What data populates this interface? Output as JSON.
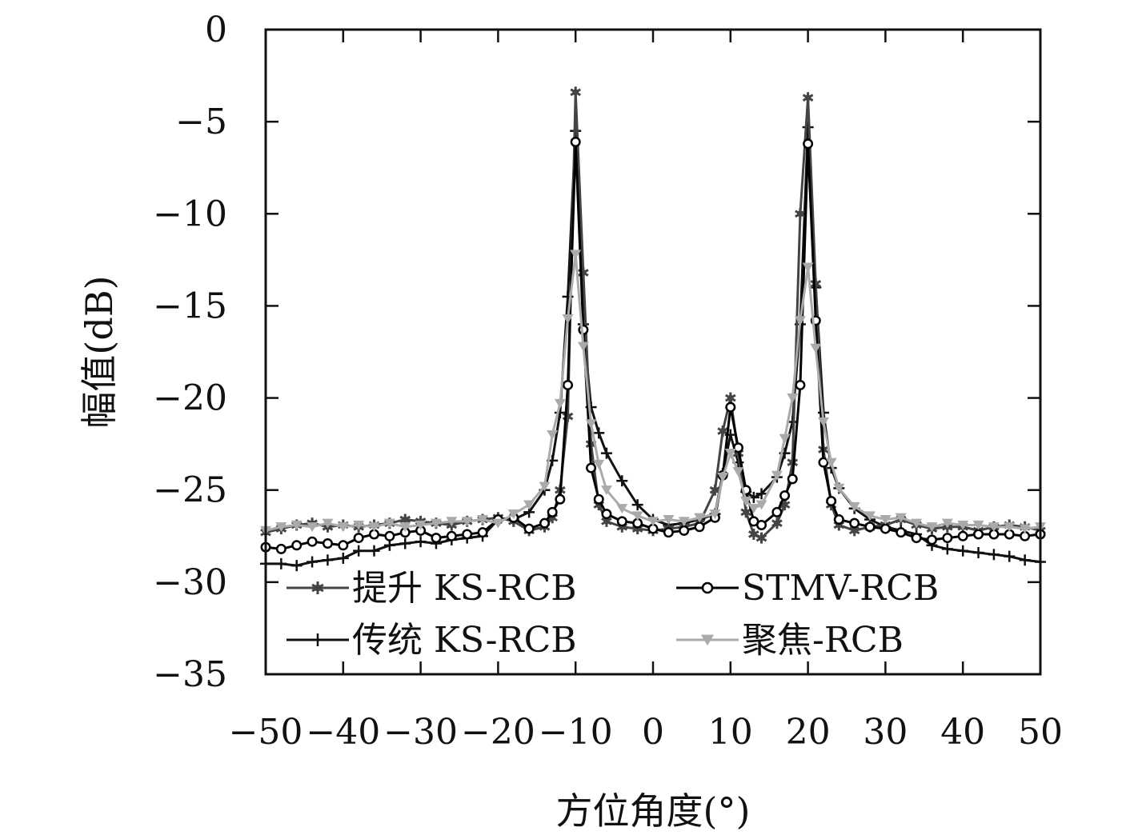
{
  "chart_data": {
    "type": "line",
    "xlabel": "方位角度(°)",
    "ylabel": "幅值(dB)",
    "xlim": [
      -50,
      50
    ],
    "ylim": [
      -35,
      0
    ],
    "xticks": [
      -50,
      -40,
      -30,
      -20,
      -10,
      0,
      10,
      20,
      30,
      40,
      50
    ],
    "xtick_labels": [
      "−50",
      "−40",
      "−30",
      "−20",
      "−10",
      "0",
      "10",
      "20",
      "30",
      "40",
      "50"
    ],
    "yticks": [
      0,
      -5,
      -10,
      -15,
      -20,
      -25,
      -30,
      -35
    ],
    "ytick_labels": [
      "0",
      "−5",
      "−10",
      "−15",
      "−20",
      "−25",
      "−30",
      "−35"
    ],
    "grid": false,
    "legend_position": "bottom-left",
    "x": [
      -50,
      -48,
      -46,
      -44,
      -42,
      -40,
      -38,
      -36,
      -34,
      -32,
      -30,
      -28,
      -26,
      -24,
      -22,
      -20,
      -18,
      -16,
      -14,
      -13,
      -12,
      -11,
      -10,
      -9,
      -8,
      -7,
      -6,
      -4,
      -2,
      0,
      2,
      4,
      6,
      8,
      9,
      10,
      11,
      12,
      13,
      14,
      16,
      17,
      18,
      19,
      20,
      21,
      22,
      23,
      24,
      26,
      28,
      30,
      32,
      34,
      36,
      38,
      40,
      42,
      44,
      46,
      48,
      50
    ],
    "series": [
      {
        "name": "提升 KS-RCB",
        "color": "#444444",
        "marker": "asterisk",
        "values": [
          -27.3,
          -27.1,
          -26.9,
          -26.8,
          -27.0,
          -26.9,
          -27.0,
          -26.9,
          -26.8,
          -26.6,
          -26.7,
          -26.8,
          -26.9,
          -26.7,
          -26.6,
          -26.5,
          -26.7,
          -27.2,
          -27.0,
          -26.5,
          -25.0,
          -21.0,
          -3.4,
          -13.2,
          -22.5,
          -25.8,
          -26.7,
          -27.0,
          -27.1,
          -27.2,
          -27.1,
          -27.0,
          -26.8,
          -25.0,
          -21.8,
          -20.0,
          -23.0,
          -26.2,
          -27.4,
          -27.6,
          -26.8,
          -25.8,
          -23.5,
          -10.0,
          -3.7,
          -13.8,
          -22.8,
          -25.8,
          -26.9,
          -27.2,
          -27.0,
          -26.9,
          -26.6,
          -26.9,
          -27.1,
          -27.0,
          -27.0,
          -27.2,
          -27.0,
          -26.9,
          -27.0,
          -27.2
        ]
      },
      {
        "name": "STMV-RCB",
        "color": "#000000",
        "marker": "circle",
        "values": [
          -28.1,
          -28.2,
          -28.0,
          -27.8,
          -27.9,
          -28.0,
          -27.6,
          -27.4,
          -27.5,
          -27.3,
          -27.2,
          -27.6,
          -27.5,
          -27.4,
          -27.3,
          -26.6,
          -26.5,
          -27.1,
          -26.8,
          -26.2,
          -25.5,
          -19.3,
          -6.1,
          -16.3,
          -23.8,
          -25.5,
          -26.3,
          -26.7,
          -26.8,
          -27.1,
          -27.3,
          -27.2,
          -27.0,
          -26.5,
          -24.2,
          -20.5,
          -22.7,
          -25.0,
          -26.7,
          -26.9,
          -26.2,
          -25.3,
          -24.4,
          -19.3,
          -6.2,
          -15.8,
          -23.5,
          -25.6,
          -26.6,
          -26.8,
          -27.0,
          -27.1,
          -27.3,
          -27.6,
          -27.7,
          -27.6,
          -27.5,
          -27.4,
          -27.4,
          -27.4,
          -27.5,
          -27.4
        ]
      },
      {
        "name": "传统 KS-RCB",
        "color": "#111111",
        "marker": "plus",
        "values": [
          -29.0,
          -29.0,
          -29.1,
          -28.9,
          -28.8,
          -28.7,
          -28.3,
          -28.3,
          -28.0,
          -27.9,
          -27.8,
          -27.9,
          -27.7,
          -27.6,
          -27.5,
          -26.6,
          -26.6,
          -26.2,
          -25.0,
          -23.4,
          -20.8,
          -14.5,
          -5.5,
          -16.0,
          -20.5,
          -21.9,
          -23.0,
          -24.5,
          -25.8,
          -26.6,
          -26.9,
          -26.8,
          -26.6,
          -26.3,
          -24.1,
          -22.0,
          -23.5,
          -25.1,
          -25.4,
          -25.2,
          -24.3,
          -23.0,
          -21.3,
          -16.0,
          -5.3,
          -14.0,
          -20.8,
          -23.8,
          -24.9,
          -26.0,
          -26.6,
          -27.0,
          -27.2,
          -27.4,
          -28.0,
          -28.2,
          -28.3,
          -28.4,
          -28.5,
          -28.6,
          -28.8,
          -28.9
        ]
      },
      {
        "name": "聚焦-RCB",
        "color": "#aaaaaa",
        "marker": "triangle-down",
        "values": [
          -27.2,
          -27.0,
          -26.9,
          -27.0,
          -26.8,
          -27.0,
          -26.9,
          -27.0,
          -26.8,
          -27.0,
          -26.9,
          -26.8,
          -26.7,
          -26.7,
          -26.6,
          -26.8,
          -26.3,
          -25.8,
          -24.8,
          -22.0,
          -20.3,
          -15.7,
          -12.2,
          -17.2,
          -21.4,
          -23.6,
          -25.0,
          -26.0,
          -26.4,
          -26.7,
          -26.6,
          -26.7,
          -26.5,
          -26.3,
          -24.3,
          -23.0,
          -24.0,
          -25.6,
          -26.0,
          -25.8,
          -24.2,
          -22.2,
          -20.0,
          -15.8,
          -12.9,
          -17.3,
          -21.3,
          -23.5,
          -24.9,
          -25.9,
          -26.4,
          -26.6,
          -26.5,
          -26.8,
          -27.0,
          -26.8,
          -26.9,
          -26.9,
          -27.0,
          -27.0,
          -27.1,
          -27.0
        ]
      }
    ]
  }
}
